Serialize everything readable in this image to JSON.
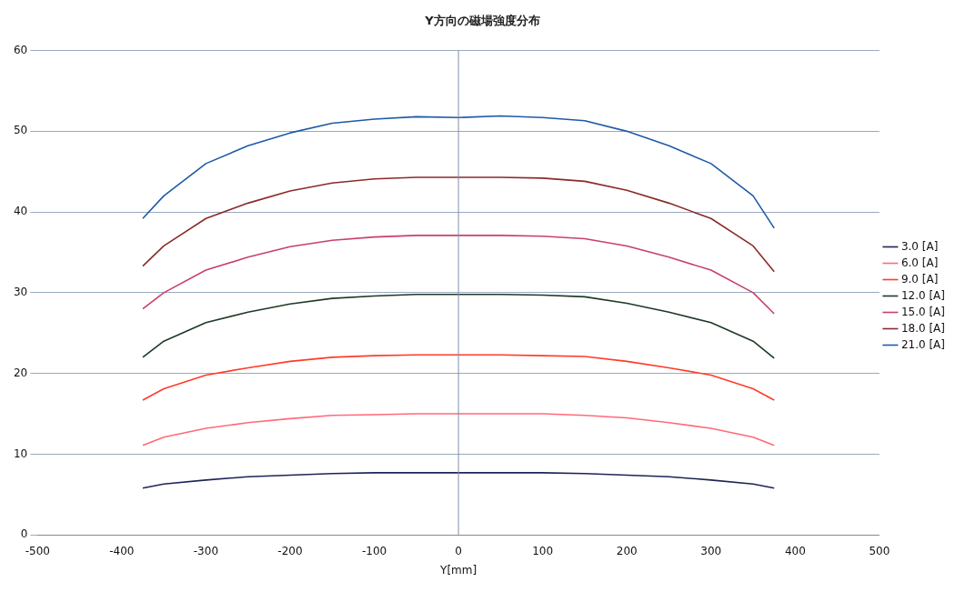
{
  "chart_data": {
    "type": "line",
    "title": "Y方向の磁場強度分布",
    "xlabel": "Y[mm]",
    "x": [
      -375,
      -350,
      -300,
      -250,
      -200,
      -150,
      -100,
      -50,
      0,
      50,
      100,
      150,
      200,
      250,
      300,
      350,
      375
    ],
    "xlim": [
      -500,
      500
    ],
    "xticks": [
      -500,
      -400,
      -300,
      -200,
      -100,
      0,
      100,
      200,
      300,
      400,
      500
    ],
    "ylim": [
      0,
      60
    ],
    "yticks": [
      0,
      10,
      20,
      30,
      40,
      50,
      60
    ],
    "grid": "y",
    "legend": "right",
    "marker": "none",
    "line_style": "solid",
    "ref_lines": [
      {
        "axis": "x",
        "value": 0,
        "color": "#8090a8"
      }
    ],
    "series": [
      {
        "name": "3.0 [A]",
        "color": "#1f2456",
        "values": [
          5.8,
          6.3,
          6.8,
          7.2,
          7.4,
          7.6,
          7.7,
          7.7,
          7.7,
          7.7,
          7.7,
          7.6,
          7.4,
          7.2,
          6.8,
          6.3,
          5.8
        ]
      },
      {
        "name": "6.0 [A]",
        "color": "#ff6a7a",
        "values": [
          11.1,
          12.1,
          13.2,
          13.9,
          14.4,
          14.8,
          14.9,
          15.0,
          15.0,
          15.0,
          15.0,
          14.8,
          14.5,
          13.9,
          13.2,
          12.1,
          11.1
        ]
      },
      {
        "name": "9.0 [A]",
        "color": "#ff3b2a",
        "values": [
          16.7,
          18.1,
          19.8,
          20.7,
          21.5,
          22.0,
          22.2,
          22.3,
          22.3,
          22.3,
          22.2,
          22.1,
          21.5,
          20.7,
          19.8,
          18.1,
          16.7
        ]
      },
      {
        "name": "12.0 [A]",
        "color": "#1e3a26",
        "values": [
          22.0,
          24.0,
          26.3,
          27.6,
          28.6,
          29.3,
          29.6,
          29.8,
          29.8,
          29.8,
          29.7,
          29.5,
          28.7,
          27.6,
          26.3,
          24.0,
          21.9
        ]
      },
      {
        "name": "15.0 [A]",
        "color": "#c8406a",
        "values": [
          28.0,
          30.0,
          32.8,
          34.4,
          35.7,
          36.5,
          36.9,
          37.1,
          37.1,
          37.1,
          37.0,
          36.7,
          35.8,
          34.4,
          32.8,
          30.0,
          27.4
        ]
      },
      {
        "name": "18.0 [A]",
        "color": "#8b2a2a",
        "values": [
          33.3,
          35.8,
          39.2,
          41.1,
          42.6,
          43.6,
          44.1,
          44.3,
          44.3,
          44.3,
          44.2,
          43.8,
          42.7,
          41.1,
          39.2,
          35.8,
          32.6
        ]
      },
      {
        "name": "21.0 [A]",
        "color": "#1f5aa8",
        "values": [
          39.2,
          42.0,
          46.0,
          48.2,
          49.8,
          51.0,
          51.5,
          51.8,
          51.7,
          51.9,
          51.7,
          51.3,
          50.0,
          48.2,
          46.0,
          42.0,
          38.0
        ]
      }
    ]
  }
}
